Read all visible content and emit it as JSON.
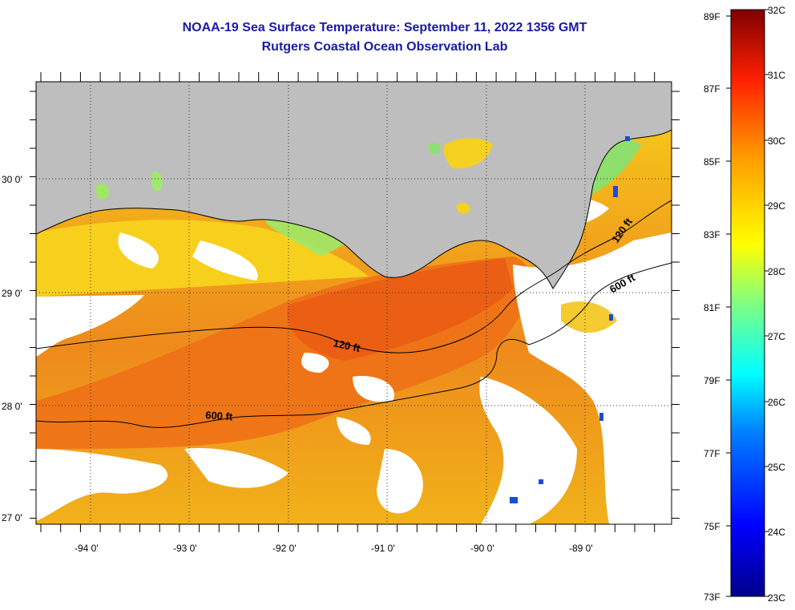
{
  "title": {
    "line1": "NOAA-19 Sea Surface Temperature:  September 11, 2022 1356 GMT",
    "line2": "Rutgers Coastal Ocean Observation Lab"
  },
  "map": {
    "lat_labels": [
      "30 0'",
      "29 0'",
      "28 0'",
      "27 0'"
    ],
    "lon_labels": [
      "-94 0'",
      "-93 0'",
      "-92 0'",
      "-91 0'",
      "-90 0'",
      "-89 0'"
    ],
    "contour_labels": [
      "120 ft",
      "600 ft",
      "120 ft",
      "600 ft"
    ],
    "land_color": "#bebebe",
    "cloud_color": "#ffffff"
  },
  "colorbar": {
    "fahrenheit": [
      "89F",
      "87F",
      "85F",
      "83F",
      "81F",
      "79F",
      "77F",
      "75F",
      "73F"
    ],
    "celsius": [
      "32C",
      "31C",
      "30C",
      "29C",
      "28C",
      "27C",
      "26C",
      "25C",
      "24C",
      "23C"
    ],
    "colors": [
      "#00008b",
      "#0000ff",
      "#0080ff",
      "#00ffff",
      "#80ff80",
      "#ffff00",
      "#ff8000",
      "#ff0000",
      "#800000"
    ]
  }
}
